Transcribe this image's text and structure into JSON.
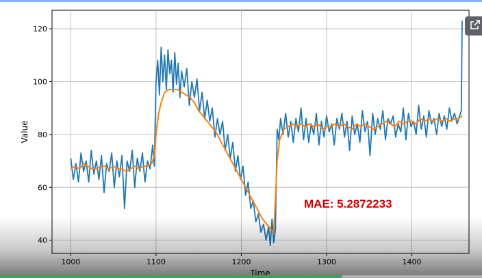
{
  "annotation": {
    "text": "MAE: 5.2872233",
    "color": "#cc0000"
  },
  "colors": {
    "series_blue": "#1f77b4",
    "series_orange": "#ff7f0e",
    "accent": "#8ab4f8",
    "progress": "#34a853"
  },
  "icons": {
    "share": "open-in-new-icon"
  },
  "video": {
    "progress_fraction": 0.71
  },
  "chart_data": {
    "type": "line",
    "xlabel": "Time",
    "ylabel": "Value",
    "xlim": [
      978,
      1467
    ],
    "ylim": [
      35,
      127
    ],
    "x_ticks": [
      1000,
      1100,
      1200,
      1300,
      1400
    ],
    "y_ticks": [
      40,
      60,
      80,
      100,
      120
    ],
    "grid": true,
    "series": [
      {
        "color": "#1f77b4",
        "x": [
          1000,
          1003,
          1006,
          1009,
          1012,
          1015,
          1018,
          1021,
          1024,
          1027,
          1030,
          1033,
          1036,
          1039,
          1042,
          1045,
          1048,
          1051,
          1054,
          1057,
          1060,
          1063,
          1066,
          1069,
          1072,
          1075,
          1078,
          1081,
          1084,
          1087,
          1090,
          1093,
          1096,
          1098,
          1100,
          1102,
          1104,
          1106,
          1108,
          1110,
          1112,
          1114,
          1116,
          1118,
          1120,
          1122,
          1124,
          1126,
          1128,
          1130,
          1133,
          1136,
          1139,
          1142,
          1145,
          1148,
          1151,
          1154,
          1157,
          1160,
          1163,
          1166,
          1169,
          1172,
          1175,
          1178,
          1181,
          1184,
          1187,
          1190,
          1193,
          1196,
          1199,
          1202,
          1205,
          1208,
          1211,
          1214,
          1217,
          1220,
          1223,
          1226,
          1229,
          1232,
          1234,
          1236,
          1238,
          1240,
          1242,
          1244,
          1246,
          1249,
          1252,
          1255,
          1258,
          1261,
          1264,
          1267,
          1270,
          1273,
          1276,
          1279,
          1282,
          1285,
          1288,
          1291,
          1294,
          1297,
          1300,
          1303,
          1306,
          1309,
          1312,
          1315,
          1318,
          1321,
          1324,
          1327,
          1330,
          1333,
          1336,
          1339,
          1342,
          1345,
          1348,
          1351,
          1354,
          1357,
          1360,
          1363,
          1366,
          1369,
          1372,
          1375,
          1378,
          1381,
          1384,
          1387,
          1390,
          1393,
          1396,
          1399,
          1402,
          1405,
          1408,
          1411,
          1414,
          1417,
          1420,
          1423,
          1426,
          1429,
          1432,
          1435,
          1438,
          1441,
          1444,
          1447,
          1450,
          1453,
          1456,
          1458,
          1459
        ],
        "y": [
          71,
          63,
          69,
          62,
          73,
          66,
          70,
          62,
          74,
          65,
          70,
          63,
          72,
          58,
          69,
          66,
          73,
          60,
          70,
          64,
          72,
          52,
          70,
          66,
          74,
          60,
          71,
          66,
          73,
          62,
          70,
          67,
          76,
          68,
          100,
          108,
          95,
          113,
          100,
          110,
          97,
          112,
          103,
          108,
          96,
          111,
          99,
          107,
          94,
          104,
          98,
          105,
          91,
          100,
          94,
          101,
          89,
          96,
          86,
          93,
          85,
          90,
          79,
          86,
          80,
          85,
          74,
          80,
          71,
          77,
          66,
          72,
          63,
          68,
          57,
          62,
          52,
          55,
          47,
          50,
          43,
          46,
          40,
          45,
          38,
          48,
          39,
          44,
          82,
          78,
          86,
          80,
          88,
          79,
          85,
          77,
          86,
          81,
          90,
          78,
          86,
          77,
          84,
          80,
          88,
          76,
          85,
          79,
          87,
          81,
          84,
          76,
          86,
          82,
          88,
          79,
          85,
          74,
          87,
          80,
          84,
          77,
          89,
          81,
          85,
          72,
          88,
          80,
          86,
          82,
          89,
          78,
          86,
          84,
          87,
          79,
          84,
          81,
          90,
          78,
          88,
          83,
          85,
          80,
          91,
          82,
          87,
          79,
          89,
          84,
          86,
          80,
          88,
          83,
          87,
          82,
          90,
          85,
          88,
          84,
          87,
          89,
          123
        ]
      },
      {
        "color": "#ff7f0e",
        "x": [
          1000,
          1005,
          1010,
          1015,
          1020,
          1025,
          1030,
          1035,
          1040,
          1045,
          1050,
          1055,
          1060,
          1065,
          1070,
          1075,
          1080,
          1085,
          1090,
          1095,
          1098,
          1100,
          1103,
          1106,
          1110,
          1115,
          1120,
          1125,
          1130,
          1135,
          1140,
          1145,
          1150,
          1155,
          1160,
          1165,
          1170,
          1175,
          1180,
          1185,
          1190,
          1195,
          1200,
          1205,
          1210,
          1215,
          1220,
          1225,
          1230,
          1235,
          1238,
          1240,
          1242,
          1245,
          1250,
          1255,
          1260,
          1265,
          1270,
          1275,
          1280,
          1285,
          1290,
          1295,
          1300,
          1305,
          1310,
          1315,
          1320,
          1325,
          1330,
          1335,
          1340,
          1345,
          1350,
          1355,
          1360,
          1365,
          1370,
          1375,
          1380,
          1385,
          1390,
          1395,
          1400,
          1405,
          1410,
          1415,
          1420,
          1425,
          1430,
          1435,
          1440,
          1445,
          1450,
          1455,
          1459
        ],
        "y": [
          67,
          68,
          67,
          69,
          68,
          67,
          67,
          68,
          68,
          67,
          68,
          67,
          67,
          66,
          67,
          68,
          67,
          68,
          68,
          69,
          72,
          80,
          88,
          92,
          96,
          97,
          97,
          97,
          96,
          95,
          94,
          92,
          89,
          87,
          85,
          83,
          81,
          78,
          75,
          72,
          69,
          66,
          63,
          60,
          57,
          54,
          51,
          48,
          46,
          44,
          43,
          56,
          70,
          78,
          82,
          83,
          84,
          83,
          84,
          83,
          84,
          83,
          84,
          82,
          83,
          83,
          84,
          83,
          84,
          83,
          82,
          84,
          83,
          84,
          83,
          82,
          83,
          84,
          85,
          84,
          83,
          85,
          84,
          85,
          85,
          84,
          86,
          85,
          86,
          85,
          86,
          85,
          86,
          85,
          86,
          86,
          87
        ]
      }
    ]
  }
}
